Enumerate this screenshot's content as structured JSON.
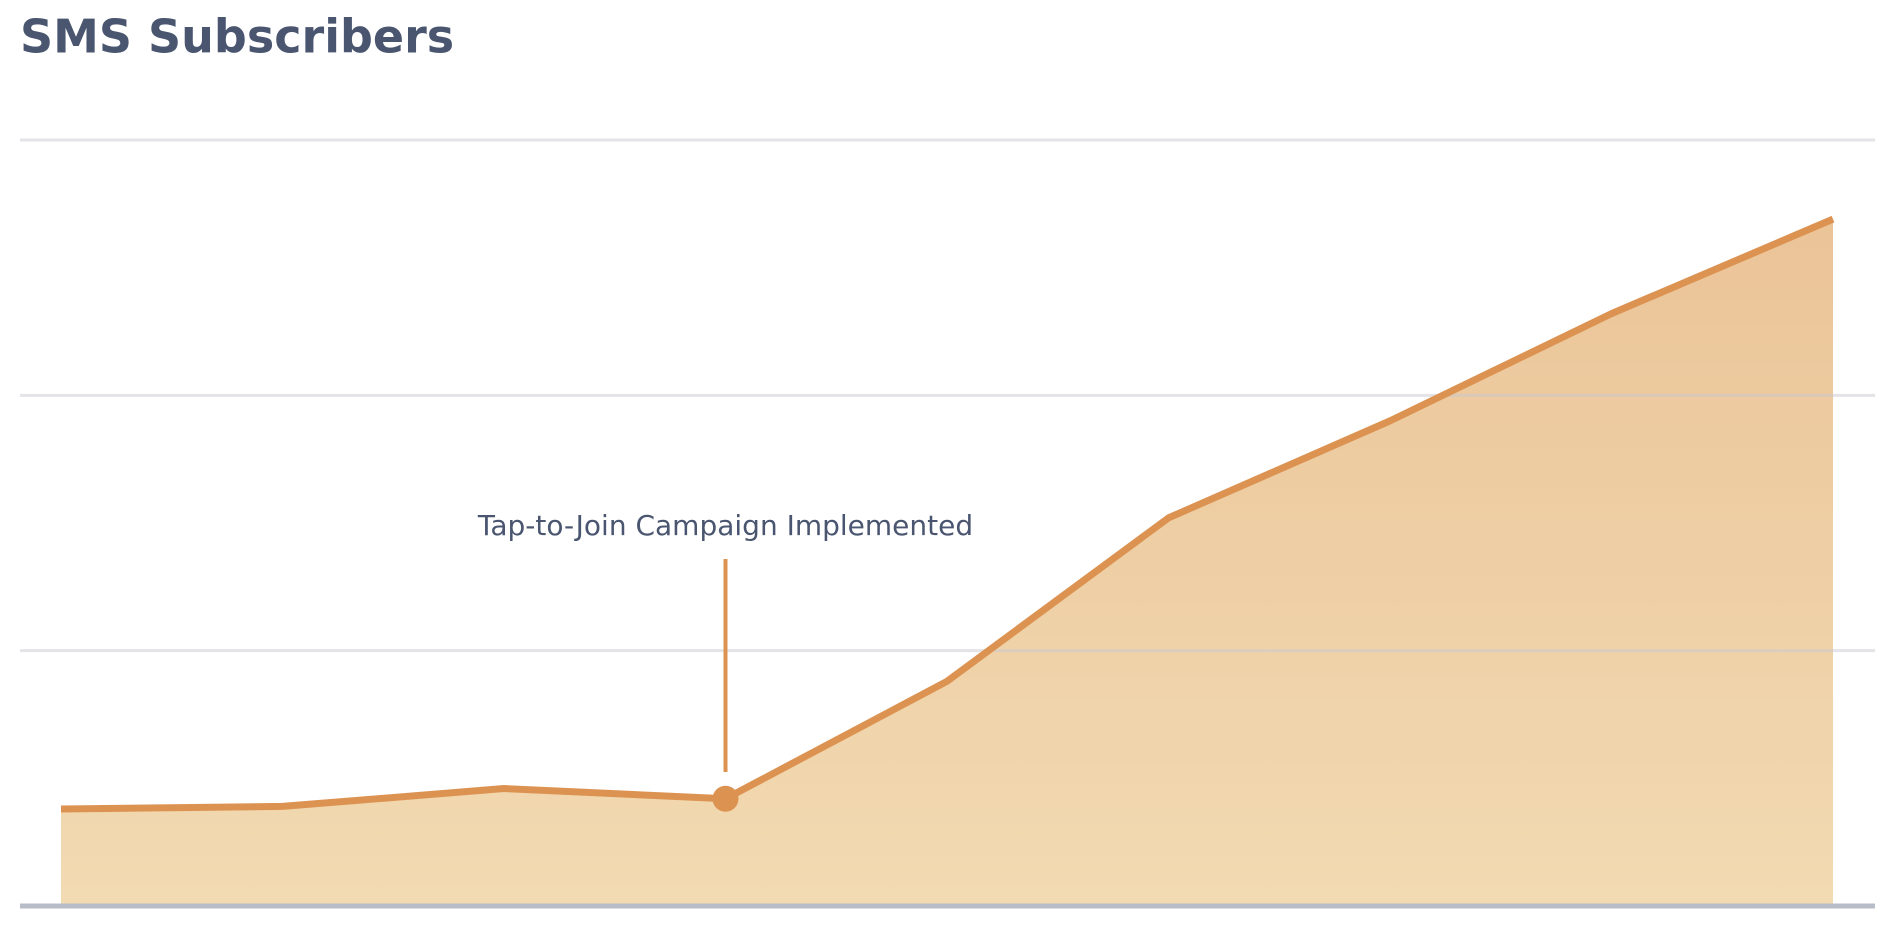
{
  "chart_data": {
    "type": "area",
    "title": "SMS Subscribers",
    "categories": [
      null,
      null,
      null,
      null,
      null,
      null,
      null,
      null,
      null
    ],
    "values": [
      0.38,
      0.39,
      0.46,
      0.42,
      0.88,
      1.52,
      1.9,
      2.32,
      2.69
    ],
    "color": "#dc9352",
    "ylim": [
      0,
      3
    ],
    "yticks": [
      0,
      1,
      2,
      3
    ],
    "grid": true,
    "annotation": {
      "text": "Tap-to-Join Campaign Implemented",
      "category_index": 3
    }
  }
}
